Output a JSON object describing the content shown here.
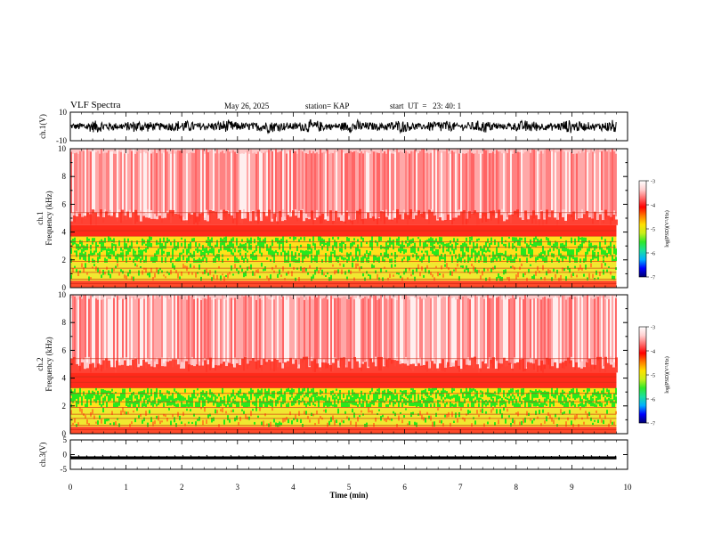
{
  "header": {
    "title": "VLF Spectra",
    "date": "May 26, 2025",
    "station": "station= KAP",
    "start": "start  UT  =   23: 40: 1"
  },
  "colors": {
    "spectrogram_high": "#ff2a1a",
    "spectrogram_mid": "#ffe11a",
    "spectrogram_low": "#27e81c",
    "colormap": [
      "#00006e",
      "#0000ff",
      "#00b0ff",
      "#18e0a0",
      "#2fe82a",
      "#c8ef1a",
      "#ffe000",
      "#ff7a00",
      "#ff0000",
      "#ff6a6a",
      "#ffd0d0",
      "#ffffff"
    ]
  },
  "chart_data": [
    {
      "type": "line",
      "title": "",
      "ylabel": "ch.1(V)",
      "ylim": [
        -10,
        10
      ],
      "yticks": [
        "10",
        "-10"
      ],
      "x_range": [
        0,
        9.8
      ],
      "series_description": "noisy waveform oscillating approximately between -5 and 5 V"
    },
    {
      "type": "heatmap",
      "ylabel_channel": "ch.1",
      "ylabel": "Frequency  (kHz)",
      "ylim": [
        0,
        10
      ],
      "yticks": [
        "0",
        "2",
        "4",
        "6",
        "8",
        "10"
      ],
      "x_range": [
        0,
        9.8
      ],
      "noise_band_top_khz": 4.5,
      "green_band_khz": [
        1.8,
        3.7
      ],
      "colorbar": {
        "label": "log(PSD)(V²/Hz)",
        "ticks": [
          "-3",
          "-4",
          "-5",
          "-6",
          "-7"
        ],
        "range": [
          -7,
          -3
        ]
      }
    },
    {
      "type": "heatmap",
      "ylabel_channel": "ch.2",
      "ylabel": "Frequency  (kHz)",
      "ylim": [
        0,
        10
      ],
      "yticks": [
        "0",
        "2",
        "4",
        "6",
        "8",
        "10"
      ],
      "x_range": [
        0,
        9.8
      ],
      "noise_band_top_khz": 4.4,
      "green_band_khz": [
        1.9,
        3.3
      ],
      "colorbar": {
        "label": "log(PSD)(V²/Hz)",
        "ticks": [
          "-3",
          "-4",
          "-5",
          "-6",
          "-7"
        ],
        "range": [
          -7,
          -3
        ]
      }
    },
    {
      "type": "line",
      "ylabel": "ch.3(V)",
      "ylim": [
        -5,
        5
      ],
      "yticks": [
        "5",
        "0",
        "-5"
      ],
      "x_range": [
        0,
        9.8
      ],
      "series_description": "flat thick band near -1 V"
    }
  ],
  "xaxis": {
    "label": "Time  (min)",
    "xlim": [
      0,
      10
    ],
    "ticks": [
      "0",
      "1",
      "2",
      "3",
      "4",
      "5",
      "6",
      "7",
      "8",
      "9",
      "10"
    ]
  }
}
